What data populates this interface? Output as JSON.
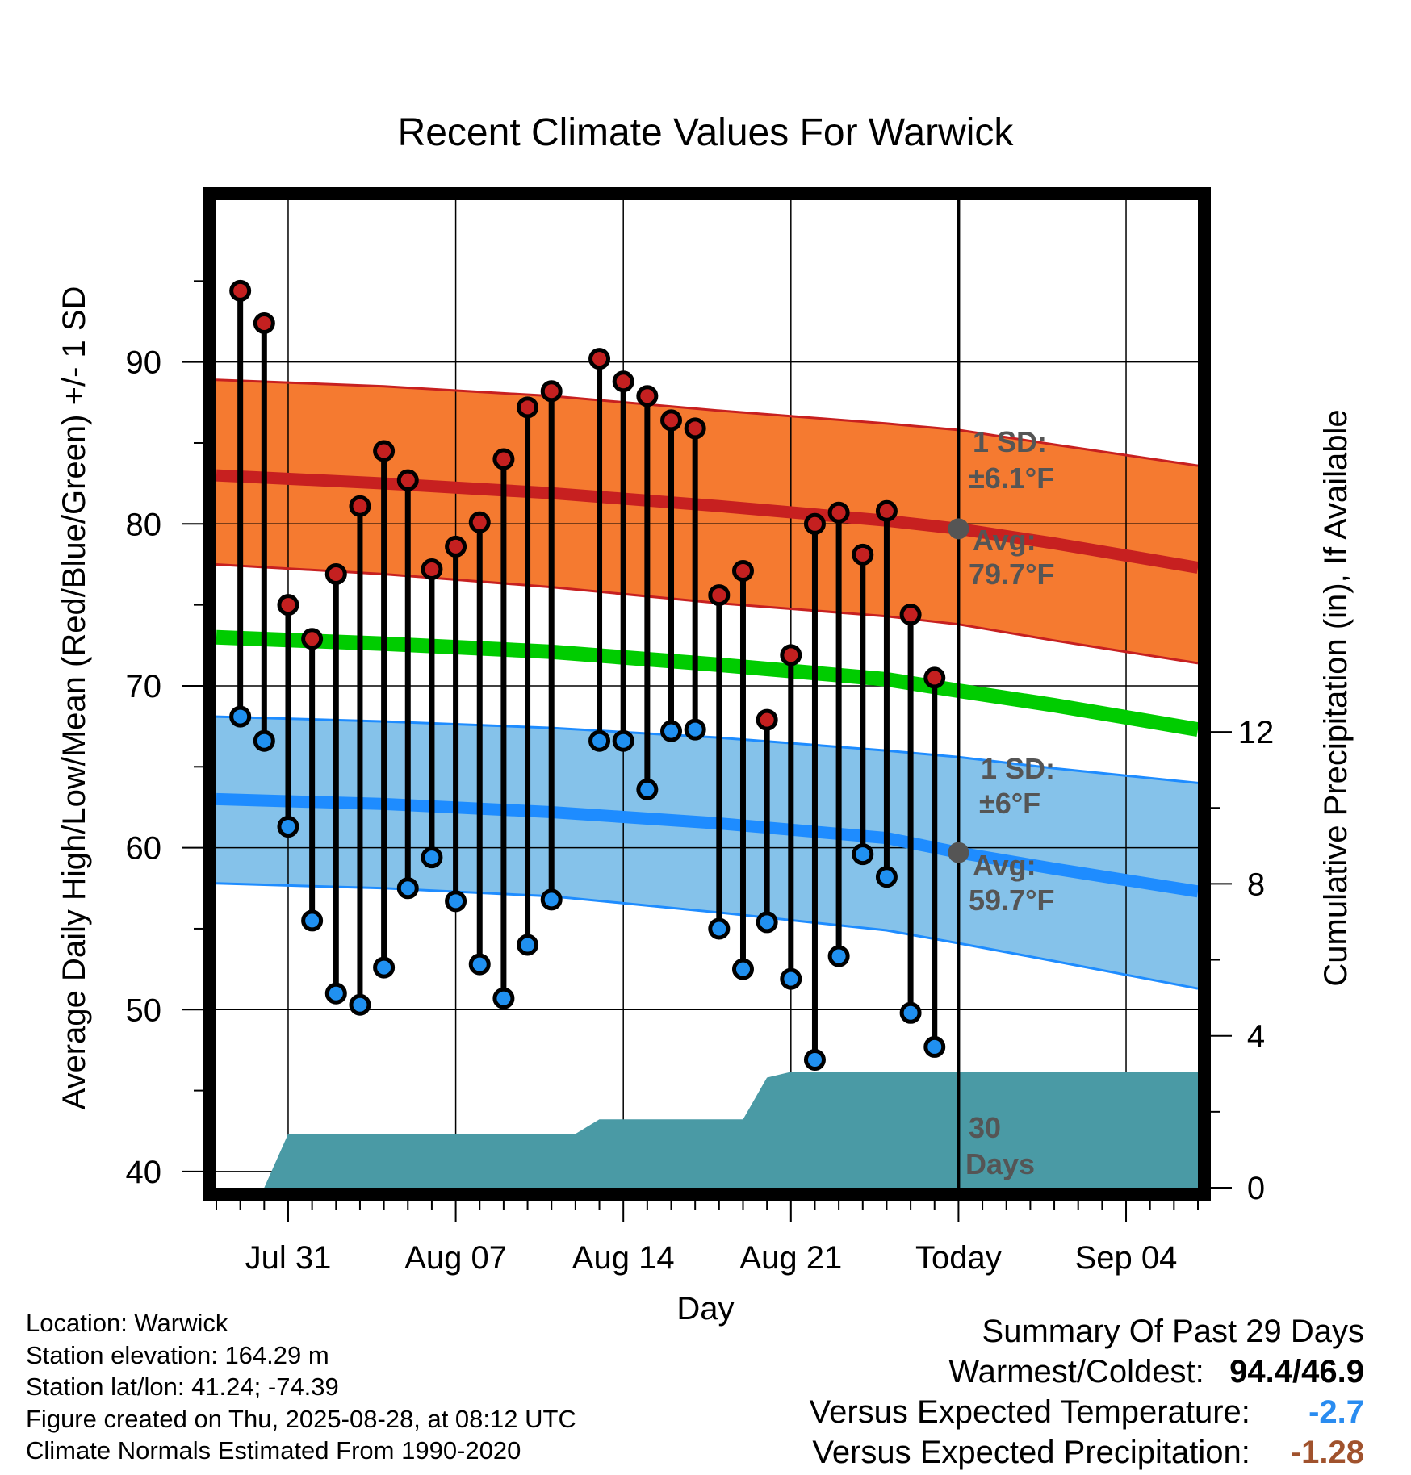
{
  "chart_data": {
    "type": "line",
    "title": "Recent Climate Values For Warwick",
    "xlabel": "Day",
    "ylabel": "Average Daily High/Low/Mean (Red/Blue/Green) +/- 1 SD",
    "y2label": "Cumulative Precipitation (in), If Available",
    "x_range": [
      "2025-07-28",
      "2025-09-07"
    ],
    "ylim": [
      39,
      100
    ],
    "y_ticks": [
      40,
      50,
      60,
      70,
      80,
      90
    ],
    "y2lim": [
      0,
      26
    ],
    "y2_ticks": [
      0,
      4,
      8,
      12
    ],
    "x_ticks": [
      {
        "date": "2025-07-31",
        "label": "Jul 31"
      },
      {
        "date": "2025-08-07",
        "label": "Aug 07"
      },
      {
        "date": "2025-08-14",
        "label": "Aug 14"
      },
      {
        "date": "2025-08-21",
        "label": "Aug 21"
      },
      {
        "date": "2025-08-28",
        "label": "Today"
      },
      {
        "date": "2025-09-04",
        "label": "Sep 04"
      }
    ],
    "grid": true,
    "today": "2025-08-28",
    "normals_dates": [
      "2025-07-28",
      "2025-08-04",
      "2025-08-11",
      "2025-08-18",
      "2025-08-25",
      "2025-08-28",
      "2025-09-01",
      "2025-09-07"
    ],
    "normal_high": {
      "avg": [
        83.0,
        82.5,
        81.9,
        81.1,
        80.2,
        79.7,
        78.8,
        77.3
      ],
      "upper": [
        88.9,
        88.5,
        87.9,
        87.0,
        86.2,
        85.8,
        84.9,
        83.6
      ],
      "lower": [
        77.5,
        76.9,
        76.1,
        75.1,
        74.3,
        73.8,
        72.8,
        71.4
      ]
    },
    "normal_low": {
      "avg": [
        63.0,
        62.7,
        62.2,
        61.5,
        60.6,
        59.7,
        58.7,
        57.3
      ],
      "upper": [
        68.1,
        67.8,
        67.4,
        66.8,
        66.0,
        65.6,
        64.9,
        64.0
      ],
      "lower": [
        57.8,
        57.5,
        57.0,
        56.0,
        54.9,
        54.1,
        53.0,
        51.3
      ]
    },
    "normal_mean": [
      73.0,
      72.6,
      72.1,
      71.3,
      70.4,
      69.7,
      68.8,
      67.3
    ],
    "daily_dates": [
      "2025-07-29",
      "2025-07-30",
      "2025-07-31",
      "2025-08-01",
      "2025-08-02",
      "2025-08-03",
      "2025-08-04",
      "2025-08-05",
      "2025-08-06",
      "2025-08-07",
      "2025-08-08",
      "2025-08-09",
      "2025-08-10",
      "2025-08-11",
      "2025-08-13",
      "2025-08-14",
      "2025-08-15",
      "2025-08-16",
      "2025-08-17",
      "2025-08-18",
      "2025-08-19",
      "2025-08-20",
      "2025-08-21",
      "2025-08-22",
      "2025-08-23",
      "2025-08-24",
      "2025-08-25",
      "2025-08-26",
      "2025-08-27"
    ],
    "daily_high": [
      94.4,
      92.4,
      75.0,
      72.9,
      76.9,
      81.1,
      84.5,
      82.7,
      77.2,
      78.6,
      80.1,
      84.0,
      87.2,
      88.2,
      90.2,
      88.8,
      87.9,
      86.4,
      85.9,
      75.6,
      77.1,
      67.9,
      71.9,
      80.0,
      80.7,
      78.1,
      80.8,
      74.4,
      70.5
    ],
    "daily_low": [
      68.1,
      66.6,
      61.3,
      55.5,
      51.0,
      50.3,
      52.6,
      57.5,
      59.4,
      56.7,
      52.8,
      50.7,
      54.0,
      56.8,
      66.6,
      66.6,
      63.6,
      67.2,
      67.3,
      55.0,
      52.5,
      55.4,
      51.9,
      46.9,
      53.3,
      59.6,
      58.2,
      49.8,
      47.7
    ],
    "precipitation": {
      "x": [
        "2025-07-28",
        "2025-07-29",
        "2025-07-30",
        "2025-07-31",
        "2025-08-12",
        "2025-08-13",
        "2025-08-19",
        "2025-08-20",
        "2025-08-21",
        "2025-09-07"
      ],
      "y": [
        0,
        0,
        0,
        1.42,
        1.42,
        1.8,
        1.8,
        2.9,
        3.05,
        3.05
      ]
    },
    "colors": {
      "high": "#c72020",
      "high_band": "#f57a30",
      "low": "#1e8cff",
      "low_band": "#85c2ea",
      "mean": "#00cc00",
      "precip": "#4a9aa5",
      "marker_high": "#c42020",
      "marker_low": "#2090f0"
    },
    "annotations": {
      "high_sd_label": "1 SD:",
      "high_sd_value": "±6.1°F",
      "high_avg_label": "Avg:",
      "high_avg_value": "79.7°F",
      "low_sd_label": "1 SD:",
      "low_sd_value": "±6°F",
      "low_avg_label": "Avg:",
      "low_avg_value": "59.7°F",
      "window_days": "30",
      "window_label": "Days"
    }
  },
  "metadata_lines": [
    "Location: Warwick",
    "Station elevation: 164.29 m",
    "Station lat/lon: 41.24; -74.39",
    "Figure created on Thu, 2025-08-28, at 08:12 UTC",
    "Climate Normals Estimated From 1990-2020"
  ],
  "summary": {
    "heading": "Summary Of Past 29 Days",
    "warmest_coldest_label": "Warmest/Coldest:",
    "warmest_coldest_value": "94.4/46.9",
    "temp_label": "Versus Expected Temperature:",
    "temp_value": "-2.7",
    "temp_color": "#2a8cf0",
    "precip_label": "Versus Expected Precipitation:",
    "precip_value": "-1.28",
    "precip_color": "#a0522d"
  }
}
